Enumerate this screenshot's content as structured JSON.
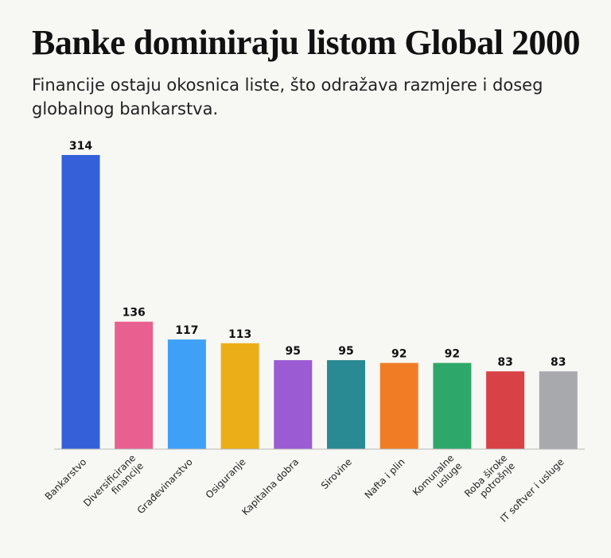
{
  "chart_data": {
    "type": "bar",
    "title": "Banke dominiraju listom Global 2000",
    "subtitle": "Financije ostaju okosnica liste, što odražava razmjere i doseg globalnog bankarstva.",
    "categories": [
      "Bankarstvo",
      "Diversificirane financije",
      "Građevinarstvo",
      "Osiguranje",
      "Kapitalna dobra",
      "Sirovine",
      "Nafta i plin",
      "Komunalne usluge",
      "Roba široke potrošnje",
      "IT softver i usluge"
    ],
    "category_lines": [
      [
        "Bankarstvo"
      ],
      [
        "Diversificirane",
        "financije"
      ],
      [
        "Građevinarstvo"
      ],
      [
        "Osiguranje"
      ],
      [
        "Kapitalna dobra"
      ],
      [
        "Sirovine"
      ],
      [
        "Nafta i plin"
      ],
      [
        "Komunalne",
        "usluge"
      ],
      [
        "Roba široke",
        "potrošnje"
      ],
      [
        "IT softver i usluge"
      ]
    ],
    "values": [
      314,
      136,
      117,
      113,
      95,
      95,
      92,
      92,
      83,
      83
    ],
    "colors": [
      "#3461d9",
      "#e8608f",
      "#3ea1f7",
      "#ecae18",
      "#9a5bd3",
      "#2a8a93",
      "#f07d25",
      "#2ea86a",
      "#d84146",
      "#a7a9ac"
    ],
    "ylim": [
      0,
      314
    ],
    "grid": false,
    "legend": "none",
    "xlabel": "",
    "ylabel": ""
  }
}
